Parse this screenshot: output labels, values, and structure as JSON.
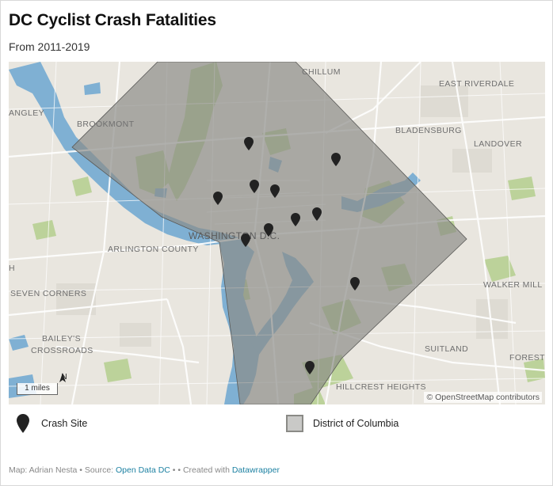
{
  "header": {
    "title": "DC Cyclist Crash Fatalities",
    "subtitle": "From 2011-2019"
  },
  "map": {
    "places": {
      "chillum": "CHILLUM",
      "east_riverdale": "EAST RIVERDALE",
      "angley": "ANGLEY",
      "brookmont": "BROOKMONT",
      "bladensburg": "BLADENSBURG",
      "landover": "LANDOVER",
      "washington": "WASHINGTON D.C.",
      "arlington": "ARLINGTON COUNTY",
      "walker_mill": "WALKER MILL",
      "h": "H",
      "seven_corners": "SEVEN CORNERS",
      "baileys_1": "BAILEY'S",
      "baileys_2": "CROSSROADS",
      "suitland": "SUITLAND",
      "forestv": "FORESTV",
      "hillcrest": "HILLCREST HEIGHTS"
    },
    "scale_label": "1 miles",
    "north_label": "N",
    "attribution": "© OpenStreetMap contributors",
    "colors": {
      "land": "#e9e6df",
      "water": "#7fb0d3",
      "park": "#bcd29a",
      "district_fill": "#8a8a86",
      "marker": "#222222"
    }
  },
  "legend": {
    "crash_site": "Crash Site",
    "district": "District of Columbia"
  },
  "footer": {
    "map_credit": "Map: Adrian Nesta • Source: ",
    "source_link": "Open Data DC",
    "sep": " • • Created with ",
    "tool_link": "Datawrapper"
  }
}
